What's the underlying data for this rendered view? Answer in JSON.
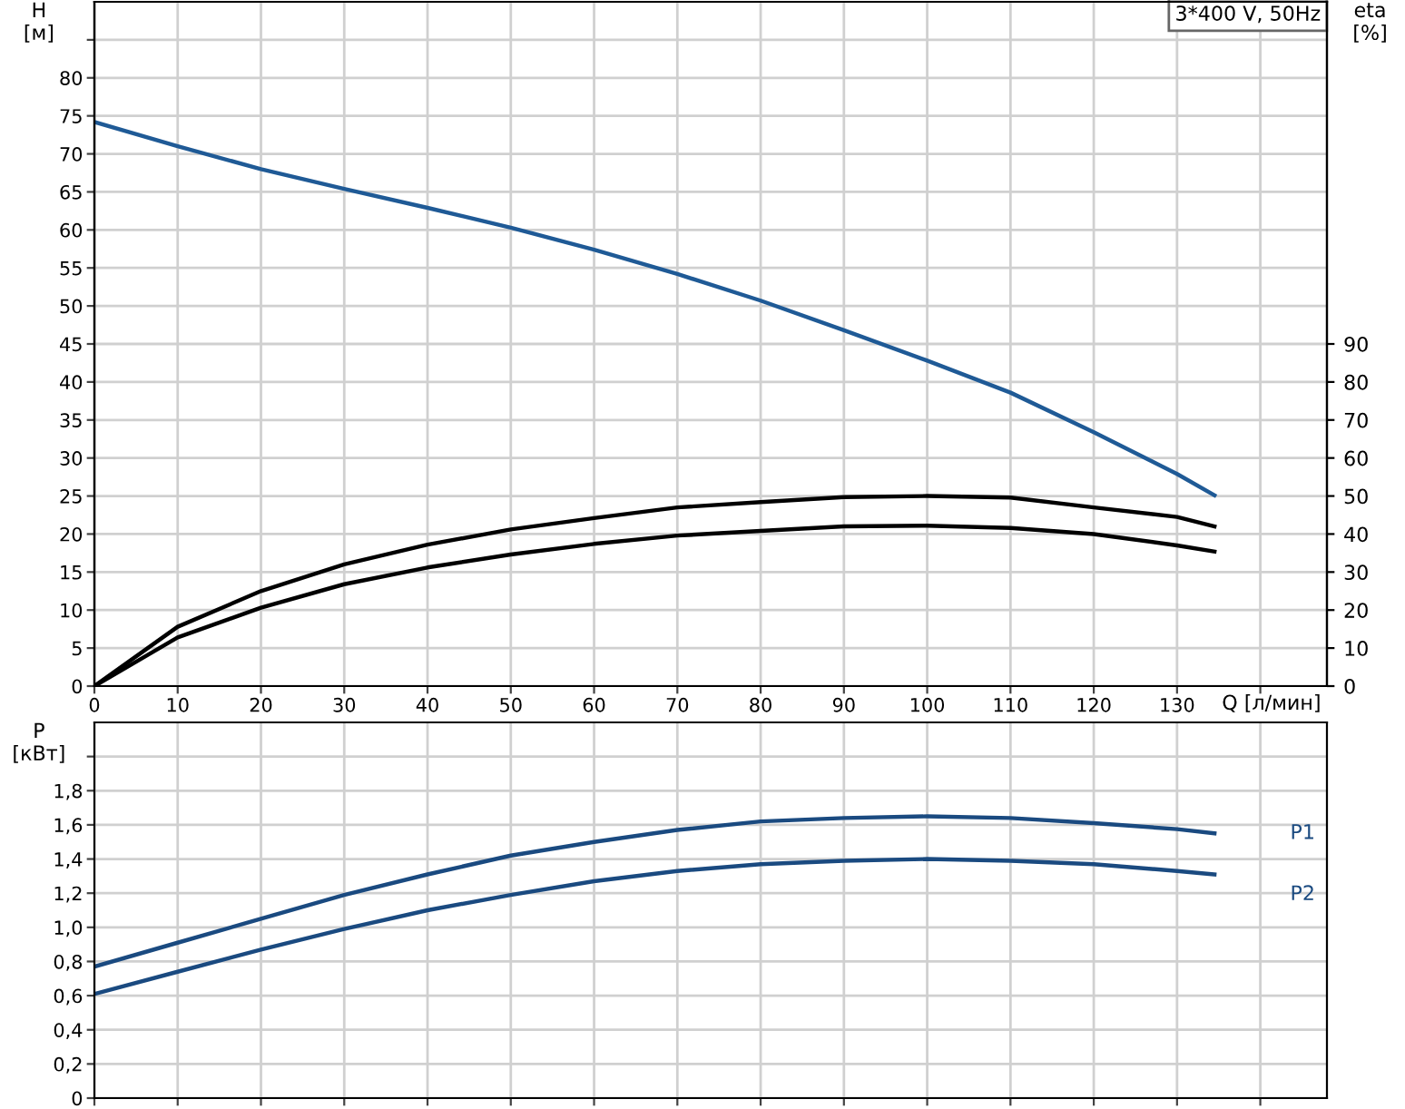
{
  "chart_data": [
    {
      "type": "line",
      "xlabel": "Q [л/мин]",
      "ylabel": "H\n[м]",
      "y2label": "eta\n[%]",
      "annotations": [
        "3*400 V, 50Hz"
      ],
      "xlim": [
        0,
        148
      ],
      "xticks": [
        0,
        10,
        20,
        30,
        40,
        50,
        60,
        70,
        80,
        90,
        100,
        110,
        120,
        130,
        {
          "value": 140,
          "label": null
        }
      ],
      "ylim": [
        0,
        90
      ],
      "yticks": [
        0,
        5,
        10,
        15,
        20,
        25,
        30,
        35,
        40,
        45,
        50,
        55,
        60,
        65,
        70,
        75,
        80,
        {
          "value": 85,
          "label": null
        }
      ],
      "y2lim": [
        0,
        180
      ],
      "y2ticks": [
        0,
        10,
        20,
        30,
        40,
        50,
        60,
        70,
        80,
        90
      ],
      "grid": true,
      "legend": false,
      "series": [
        {
          "color": "#1f5a96",
          "x": [
            0,
            10,
            20,
            30,
            40,
            50,
            60,
            70,
            80,
            90,
            100,
            110,
            120,
            130,
            134.5
          ],
          "values": [
            74.2,
            71,
            68,
            65.4,
            62.9,
            60.3,
            57.4,
            54.2,
            50.7,
            46.8,
            42.8,
            38.6,
            33.4,
            27.9,
            25.1
          ]
        },
        {
          "color": "#000000",
          "axis": "y2",
          "x": [
            0,
            10,
            20,
            30,
            40,
            50,
            60,
            70,
            80,
            90,
            100,
            110,
            120,
            130,
            134.5
          ],
          "values": [
            0,
            15.6,
            25,
            32,
            37.2,
            41.2,
            44.2,
            47,
            48.4,
            49.7,
            50,
            49.6,
            47,
            44.5,
            42
          ]
        },
        {
          "color": "#000000",
          "axis": "y2",
          "x": [
            0,
            10,
            20,
            30,
            40,
            50,
            60,
            70,
            80,
            90,
            100,
            110,
            120,
            130,
            134.5
          ],
          "values": [
            0,
            12.8,
            20.6,
            26.8,
            31.2,
            34.6,
            37.4,
            39.6,
            40.8,
            42,
            42.2,
            41.6,
            40,
            37,
            35.4
          ]
        }
      ]
    },
    {
      "type": "line",
      "ylabel": "P\n[кВт]",
      "tick_labels": "y",
      "xlim": [
        0,
        148
      ],
      "xticks": [
        0,
        10,
        20,
        30,
        40,
        50,
        60,
        70,
        80,
        90,
        100,
        110,
        120,
        130,
        140
      ],
      "ylim": [
        0,
        2.2
      ],
      "yticks": [
        0,
        {
          "value": 0.2,
          "label": "0,2"
        },
        {
          "value": 0.4,
          "label": "0,4"
        },
        {
          "value": 0.6,
          "label": "0,6"
        },
        {
          "value": 0.8,
          "label": "0,8"
        },
        {
          "value": 1.0,
          "label": "1,0"
        },
        {
          "value": 1.2,
          "label": "1,2"
        },
        {
          "value": 1.4,
          "label": "1,4"
        },
        {
          "value": 1.6,
          "label": "1,6"
        },
        {
          "value": 1.8,
          "label": "1,8"
        },
        {
          "value": 2.0,
          "label": null
        }
      ],
      "grid": true,
      "legend": false,
      "series": [
        {
          "name": "P1",
          "color": "#1a4a80",
          "x": [
            0,
            10,
            20,
            30,
            40,
            50,
            60,
            70,
            80,
            90,
            100,
            110,
            120,
            130,
            134.5
          ],
          "values": [
            0.77,
            0.91,
            1.05,
            1.19,
            1.31,
            1.42,
            1.5,
            1.57,
            1.62,
            1.64,
            1.65,
            1.64,
            1.61,
            1.575,
            1.55
          ]
        },
        {
          "name": "P2",
          "color": "#1a4a80",
          "x": [
            0,
            10,
            20,
            30,
            40,
            50,
            60,
            70,
            80,
            90,
            100,
            110,
            120,
            130,
            134.5
          ],
          "values": [
            0.61,
            0.74,
            0.87,
            0.99,
            1.1,
            1.19,
            1.27,
            1.33,
            1.37,
            1.39,
            1.4,
            1.39,
            1.37,
            1.33,
            1.31
          ]
        }
      ]
    }
  ]
}
